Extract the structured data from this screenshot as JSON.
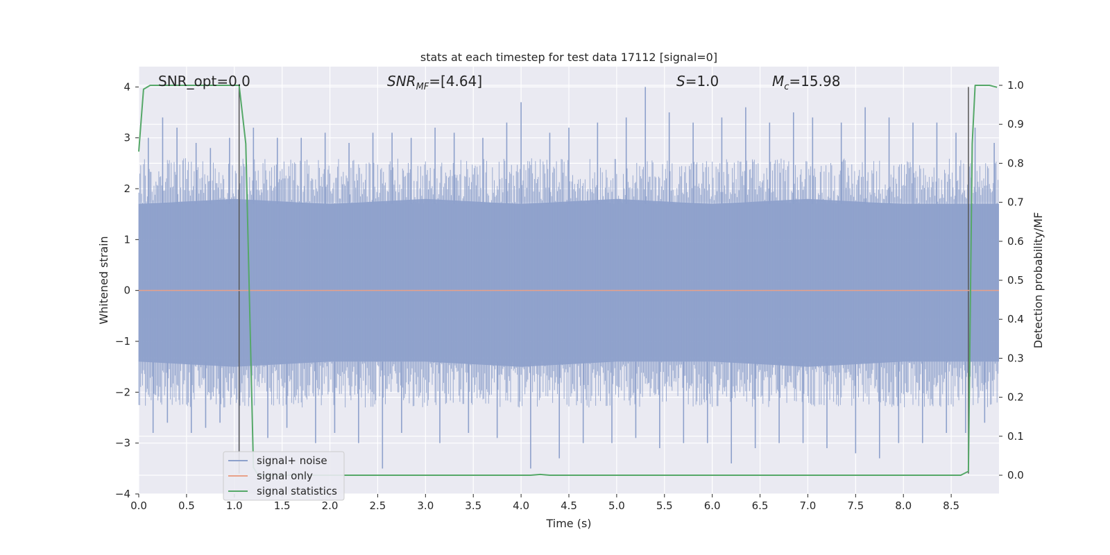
{
  "chart_data": {
    "type": "line",
    "title": "stats at each timestep for test data 17112 [signal=0]",
    "xlabel": "Time (s)",
    "ylabel": "Whitened strain",
    "y2label": "Detection probability/MF",
    "xlim": [
      0.0,
      9.0
    ],
    "ylim": [
      -4.0,
      4.4
    ],
    "y2lim": [
      -0.048,
      1.048
    ],
    "xticks": [
      "0.0",
      "0.5",
      "1.0",
      "1.5",
      "2.0",
      "2.5",
      "3.0",
      "3.5",
      "4.0",
      "4.5",
      "5.0",
      "5.5",
      "6.0",
      "6.5",
      "7.0",
      "7.5",
      "8.0",
      "8.5"
    ],
    "yticks": [
      "4",
      "3",
      "2",
      "1",
      "0",
      "−1",
      "−2",
      "−3",
      "−4"
    ],
    "y2ticks": [
      "1.0",
      "0.9",
      "0.8",
      "0.7",
      "0.6",
      "0.5",
      "0.4",
      "0.3",
      "0.2",
      "0.1",
      "0.0"
    ],
    "grid": true,
    "legend_position": "lower-left",
    "annotations": {
      "snr_opt": "SNR_opt=0.0",
      "snr_mf_main": "SNR",
      "snr_mf_sub": "MF",
      "snr_mf_value": "=[4.64]",
      "s_main": "S",
      "s_value": "=1.0",
      "mc_main": "M",
      "mc_sub": "c",
      "mc_value": "=15.98"
    },
    "noise_envelope": {
      "x": [
        0.0,
        1.0,
        2.0,
        3.0,
        4.0,
        5.0,
        6.0,
        7.0,
        8.0,
        9.0
      ],
      "upper": [
        1.7,
        1.8,
        1.7,
        1.8,
        1.7,
        1.8,
        1.7,
        1.8,
        1.7,
        1.7
      ],
      "lower": [
        -1.4,
        -1.5,
        -1.4,
        -1.4,
        -1.5,
        -1.4,
        -1.4,
        -1.5,
        -1.4,
        -1.4
      ]
    },
    "noise_spikes": {
      "x": [
        0.1,
        0.15,
        0.25,
        0.3,
        0.4,
        0.55,
        0.6,
        0.7,
        0.75,
        0.85,
        0.95,
        1.05,
        1.2,
        1.35,
        1.45,
        1.55,
        1.7,
        1.85,
        1.95,
        2.05,
        2.2,
        2.3,
        2.45,
        2.55,
        2.65,
        2.75,
        2.85,
        3.1,
        3.15,
        3.3,
        3.45,
        3.6,
        3.75,
        3.85,
        4.0,
        4.1,
        4.3,
        4.4,
        4.5,
        4.65,
        4.8,
        4.95,
        5.1,
        5.2,
        5.3,
        5.45,
        5.55,
        5.7,
        5.8,
        5.95,
        6.1,
        6.2,
        6.35,
        6.45,
        6.6,
        6.7,
        6.85,
        6.95,
        7.05,
        7.2,
        7.35,
        7.5,
        7.6,
        7.75,
        7.85,
        7.95,
        8.1,
        8.2,
        8.35,
        8.45,
        8.55,
        8.65,
        8.75,
        8.85,
        8.95
      ],
      "y": [
        3.0,
        -2.8,
        3.4,
        -2.6,
        3.2,
        -2.8,
        2.9,
        -2.7,
        2.8,
        -2.6,
        3.0,
        -3.3,
        3.2,
        -2.9,
        3.0,
        -2.7,
        3.0,
        -3.0,
        3.1,
        -2.8,
        2.9,
        -3.0,
        3.1,
        -3.5,
        3.1,
        -2.8,
        3.0,
        3.2,
        -3.0,
        3.1,
        -2.8,
        3.0,
        -2.9,
        3.3,
        3.7,
        -3.5,
        3.1,
        -3.3,
        3.2,
        -3.0,
        3.3,
        -3.0,
        3.4,
        -2.9,
        4.0,
        -3.1,
        3.5,
        -3.0,
        3.3,
        -3.0,
        3.4,
        -3.4,
        3.6,
        -3.1,
        3.3,
        -3.0,
        3.5,
        -3.0,
        3.4,
        -3.1,
        3.3,
        -3.2,
        3.6,
        -3.3,
        3.4,
        -3.0,
        3.3,
        -3.0,
        3.3,
        -2.8,
        3.1,
        -2.8,
        3.2,
        -2.6,
        2.9
      ]
    },
    "series": [
      {
        "name": "signal+ noise",
        "color": "#8da0cb",
        "values_note": "dense noise, whitened strain in approximately [-2.5, 2.5] with spikes to about ±4"
      },
      {
        "name": "signal only",
        "color": "#e8a088",
        "x": [
          0.0,
          9.0
        ],
        "y": [
          0.0,
          0.0
        ]
      },
      {
        "name": "signal statistics",
        "color": "#55a868",
        "axis": "right",
        "x": [
          0.0,
          0.05,
          0.12,
          0.5,
          1.0,
          1.05,
          1.12,
          1.2,
          1.25,
          4.1,
          4.2,
          4.3,
          8.6,
          8.68,
          8.72,
          8.75,
          8.9,
          8.98
        ],
        "y": [
          0.83,
          0.99,
          1.0,
          1.0,
          1.0,
          1.0,
          0.85,
          0.02,
          0.0,
          0.0,
          0.002,
          0.0,
          0.0,
          0.01,
          0.85,
          1.0,
          1.0,
          0.995
        ]
      }
    ],
    "vertical_lines": [
      1.05,
      8.68
    ],
    "vertical_line_color": "#555555"
  }
}
